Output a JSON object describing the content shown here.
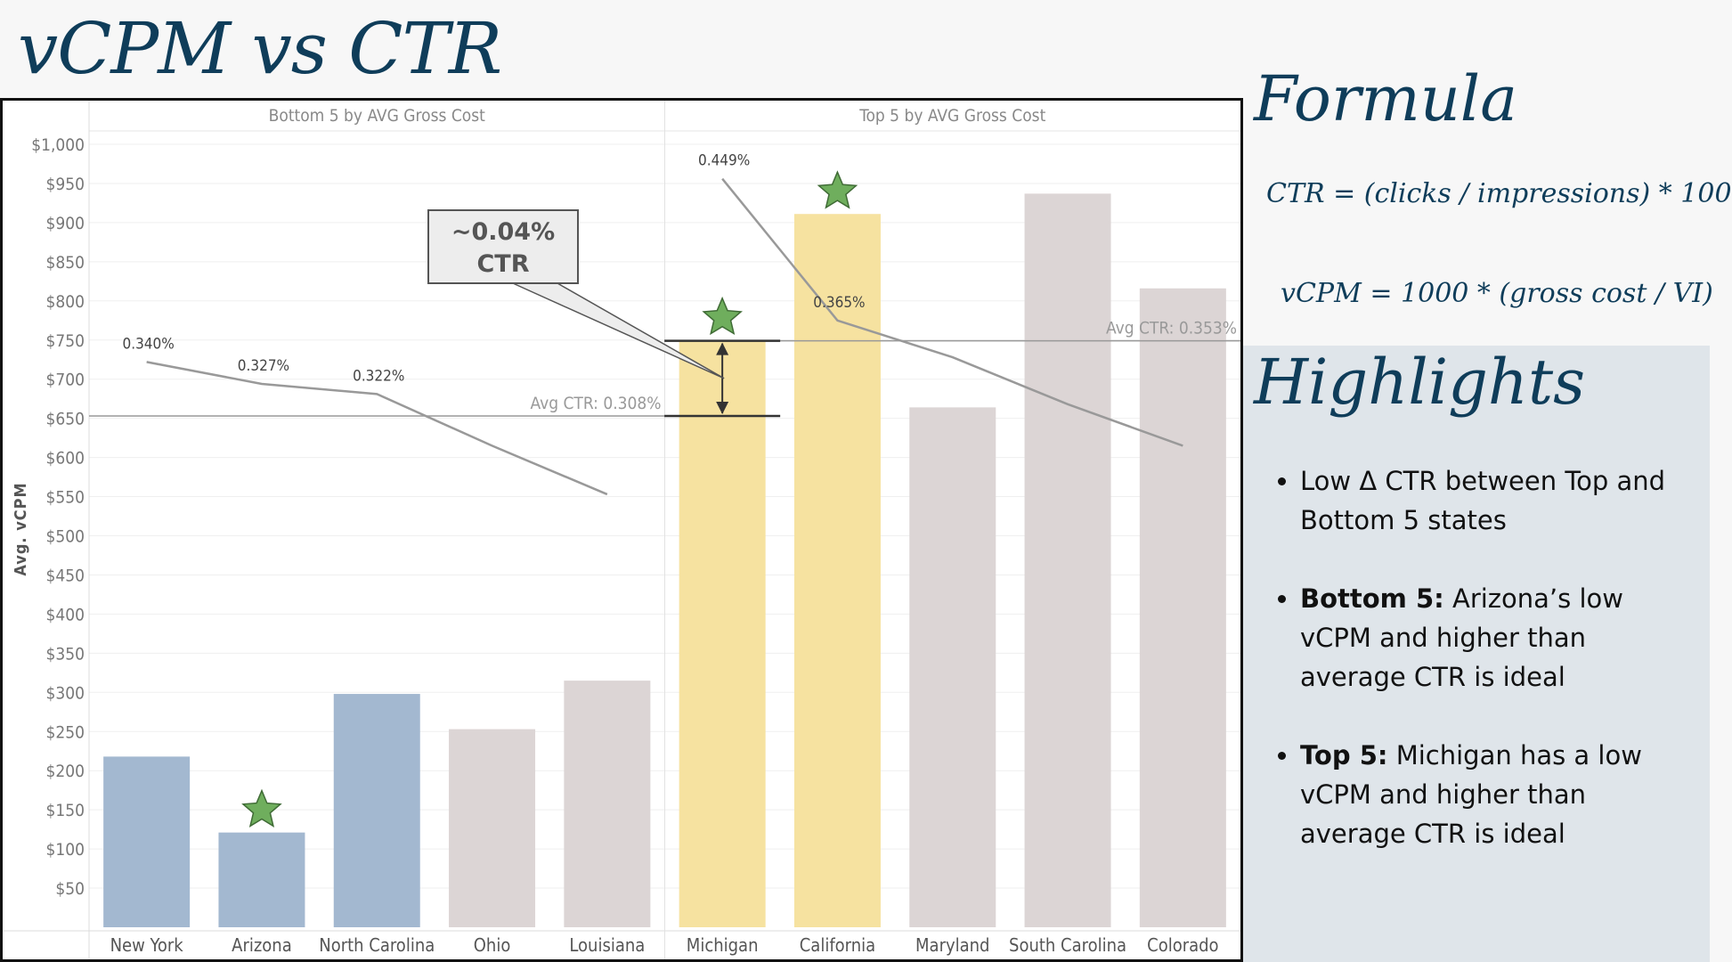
{
  "title": "vCPM vs CTR",
  "formula": {
    "heading": "Formula",
    "ctr": "CTR = (clicks / impressions) * 100",
    "vcpm": "vCPM = 1000 * (gross cost / VI)"
  },
  "highlights": {
    "heading": "Highlights",
    "items": [
      {
        "bold": "",
        "text": "Low Δ CTR between Top and Bottom 5 states"
      },
      {
        "bold": "Bottom 5:",
        "text": " Arizona’s low vCPM and higher than average CTR is ideal"
      },
      {
        "bold": "Top 5:",
        "text": " Michigan has a low vCPM and higher than average CTR is ideal"
      }
    ]
  },
  "chart_data": {
    "type": "bar",
    "ylabel": "Avg. vCPM",
    "ylim": [
      0,
      1000
    ],
    "yticks": [
      "$50",
      "$100",
      "$150",
      "$200",
      "$250",
      "$300",
      "$350",
      "$400",
      "$450",
      "$500",
      "$550",
      "$600",
      "$650",
      "$700",
      "$750",
      "$800",
      "$850",
      "$900",
      "$950",
      "$1,000"
    ],
    "grid": true,
    "panels": [
      {
        "label": "Bottom 5 by AVG Gross Cost",
        "categories": [
          "New York",
          "Arizona",
          "North Carolina",
          "Ohio",
          "Louisiana"
        ],
        "vcpm": [
          218,
          121,
          298,
          253,
          315
        ],
        "bar_colors": [
          "#a3b8d0",
          "#a3b8d0",
          "#a3b8d0",
          "#dcd5d5",
          "#dcd5d5"
        ],
        "stars": [
          "Arizona"
        ],
        "ctr_line_vcpm": [
          722,
          694,
          681,
          615,
          553
        ],
        "ctr_labels": [
          "0.340%",
          "0.327%",
          "0.322%",
          "",
          ""
        ],
        "avg_ctr_label": "Avg CTR: 0.308%",
        "avg_line_vcpm": 653
      },
      {
        "label": "Top 5 by AVG Gross Cost",
        "categories": [
          "Michigan",
          "California",
          "Maryland",
          "South Carolina",
          "Colorado"
        ],
        "vcpm": [
          750,
          911,
          664,
          937,
          816
        ],
        "bar_colors": [
          "#f6e2a0",
          "#f6e2a0",
          "#dcd5d5",
          "#dcd5d5",
          "#dcd5d5"
        ],
        "stars": [
          "Michigan",
          "California"
        ],
        "ctr_line_vcpm": [
          956,
          775,
          728,
          668,
          615
        ],
        "ctr_labels": [
          "0.449%",
          "0.365%",
          "",
          "",
          ""
        ],
        "avg_ctr_label": "Avg CTR: 0.353%",
        "avg_line_vcpm": 749
      }
    ],
    "annotation": {
      "line1": "~0.04%",
      "line2": "CTR"
    },
    "colors": {
      "bottom_bar": "#a3b8d0",
      "highlight_bar": "#f6e2a0",
      "other_bar": "#dcd5d5",
      "star": "#6fae5d",
      "ctr_line": "#999999"
    }
  }
}
